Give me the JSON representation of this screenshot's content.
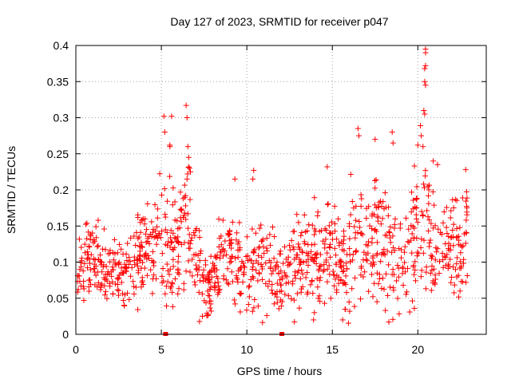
{
  "chart_data": {
    "type": "scatter",
    "title": "Day 127 of 2023, SRMTID for receiver p047",
    "xlabel": "GPS time / hours",
    "ylabel": "SRMTID / TECUs",
    "xlim": [
      0,
      24
    ],
    "ylim": [
      0,
      0.4
    ],
    "xticks": [
      0,
      5,
      10,
      15,
      20
    ],
    "xtick_labels": [
      "0",
      "5",
      "10",
      "15",
      "20"
    ],
    "yticks": [
      0,
      0.05,
      0.1,
      0.15,
      0.2,
      0.25,
      0.3,
      0.35,
      0.4
    ],
    "ytick_labels": [
      "0",
      "0.05",
      "0.1",
      "0.15",
      "0.2",
      "0.25",
      "0.3",
      "0.35",
      "0.4"
    ],
    "grid": true,
    "marker": "plus",
    "color": "#ff0000",
    "series": [
      {
        "name": "SRMTID",
        "trend": {
          "x": [
            0,
            0.5,
            1,
            1.5,
            2,
            2.5,
            3,
            3.5,
            4,
            4.5,
            5,
            5.5,
            6,
            6.5,
            7,
            7.5,
            8,
            8.5,
            9,
            9.5,
            10,
            10.5,
            11,
            11.5,
            12,
            12.5,
            13,
            13.5,
            14,
            14.5,
            15,
            15.5,
            16,
            16.5,
            17,
            17.5,
            18,
            18.5,
            19,
            19.5,
            20,
            20.5,
            21,
            21.5,
            22,
            22.5,
            22.9
          ],
          "y": [
            0.085,
            0.1,
            0.115,
            0.1,
            0.09,
            0.08,
            0.09,
            0.105,
            0.12,
            0.13,
            0.14,
            0.12,
            0.12,
            0.16,
            0.1,
            0.07,
            0.065,
            0.1,
            0.11,
            0.09,
            0.075,
            0.1,
            0.1,
            0.095,
            0.085,
            0.09,
            0.1,
            0.11,
            0.11,
            0.1,
            0.115,
            0.09,
            0.1,
            0.14,
            0.115,
            0.12,
            0.13,
            0.11,
            0.1,
            0.12,
            0.15,
            0.16,
            0.11,
            0.115,
            0.13,
            0.1,
            0.16
          ],
          "spread": [
            0.02,
            0.025,
            0.03,
            0.025,
            0.025,
            0.025,
            0.025,
            0.03,
            0.03,
            0.035,
            0.045,
            0.045,
            0.045,
            0.05,
            0.035,
            0.025,
            0.025,
            0.035,
            0.035,
            0.035,
            0.03,
            0.035,
            0.03,
            0.03,
            0.03,
            0.03,
            0.03,
            0.03,
            0.03,
            0.035,
            0.04,
            0.03,
            0.045,
            0.05,
            0.045,
            0.045,
            0.05,
            0.045,
            0.04,
            0.05,
            0.06,
            0.06,
            0.035,
            0.035,
            0.04,
            0.035,
            0.035
          ]
        },
        "n_points": 1150,
        "outliers": [
          {
            "x": 5.15,
            "y": 0.302
          },
          {
            "x": 5.2,
            "y": 0.28
          },
          {
            "x": 5.5,
            "y": 0.26
          },
          {
            "x": 5.6,
            "y": 0.302
          },
          {
            "x": 5.5,
            "y": 0.262
          },
          {
            "x": 6.45,
            "y": 0.317
          },
          {
            "x": 6.5,
            "y": 0.3
          },
          {
            "x": 6.55,
            "y": 0.26
          },
          {
            "x": 6.6,
            "y": 0.245
          },
          {
            "x": 6.65,
            "y": 0.23
          },
          {
            "x": 6.7,
            "y": 0.225
          },
          {
            "x": 6.5,
            "y": 0.215
          },
          {
            "x": 16.5,
            "y": 0.285
          },
          {
            "x": 16.55,
            "y": 0.275
          },
          {
            "x": 17.5,
            "y": 0.27
          },
          {
            "x": 18.5,
            "y": 0.28
          },
          {
            "x": 18.55,
            "y": 0.265
          },
          {
            "x": 20.0,
            "y": 0.262
          },
          {
            "x": 20.15,
            "y": 0.289
          },
          {
            "x": 20.2,
            "y": 0.275
          },
          {
            "x": 20.3,
            "y": 0.26
          },
          {
            "x": 20.35,
            "y": 0.31
          },
          {
            "x": 20.4,
            "y": 0.305
          },
          {
            "x": 20.4,
            "y": 0.35
          },
          {
            "x": 20.45,
            "y": 0.345
          },
          {
            "x": 20.4,
            "y": 0.368
          },
          {
            "x": 20.45,
            "y": 0.372
          },
          {
            "x": 20.45,
            "y": 0.39
          },
          {
            "x": 20.45,
            "y": 0.395
          },
          {
            "x": 20.9,
            "y": 0.24
          },
          {
            "x": 21.15,
            "y": 0.235
          },
          {
            "x": 14.7,
            "y": 0.232
          },
          {
            "x": 10.4,
            "y": 0.227
          },
          {
            "x": 10.35,
            "y": 0.215
          },
          {
            "x": 15.6,
            "y": 0.02
          },
          {
            "x": 13.9,
            "y": 0.02
          },
          {
            "x": 13.95,
            "y": 0.03
          },
          {
            "x": 7.4,
            "y": 0.025
          },
          {
            "x": 9.3,
            "y": 0.215
          },
          {
            "x": 22.8,
            "y": 0.228
          }
        ],
        "zero_markers": [
          5.25,
          12.05
        ]
      }
    ]
  }
}
